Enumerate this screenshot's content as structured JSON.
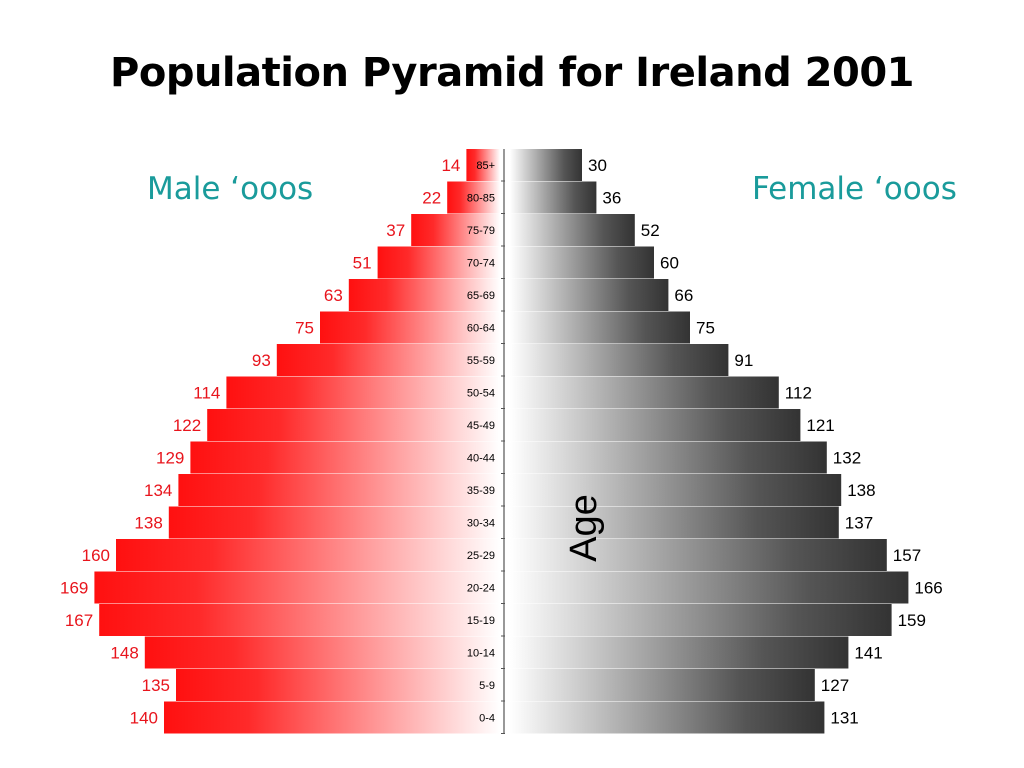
{
  "title": "Population Pyramid for Ireland 2001",
  "labels": {
    "male": "Male ‘ooos",
    "female": "Female ‘ooos",
    "age": "Age"
  },
  "colors": {
    "male": "#ff1a1a",
    "male_value_text": "#e8141c",
    "female": "#3a3a3a",
    "side_label": "#1a9b9b"
  },
  "chart_data": {
    "type": "bar",
    "orientation": "horizontal-pyramid",
    "title": "Population Pyramid for Ireland 2001",
    "ylabel": "Age",
    "categories": [
      "85+",
      "80-85",
      "75-79",
      "70-74",
      "65-69",
      "60-64",
      "55-59",
      "50-54",
      "45-49",
      "40-44",
      "35-39",
      "30-34",
      "25-29",
      "20-24",
      "15-19",
      "10-14",
      "5-9",
      "0-4"
    ],
    "series": [
      {
        "name": "Male ‘ooos",
        "values": [
          14,
          22,
          37,
          51,
          63,
          75,
          93,
          114,
          122,
          129,
          134,
          138,
          160,
          169,
          167,
          148,
          135,
          140
        ]
      },
      {
        "name": "Female ‘ooos",
        "values": [
          30,
          36,
          52,
          60,
          66,
          75,
          91,
          112,
          121,
          132,
          138,
          137,
          157,
          166,
          159,
          141,
          127,
          131
        ]
      }
    ],
    "grid": false
  }
}
